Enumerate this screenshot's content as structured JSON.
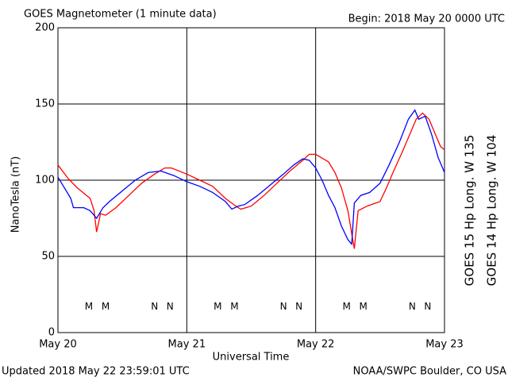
{
  "chart_data": {
    "type": "line",
    "title": "GOES Magnetometer (1 minute data)",
    "begin": "Begin:  2018 May 20 0000 UTC",
    "updated": "Updated 2018 May 22 23:59:01 UTC",
    "source": "NOAA/SWPC Boulder, CO USA",
    "x_label": "Universal Time",
    "y_label": "NanoTesla (nT)",
    "xlim": [
      0,
      3
    ],
    "xticks": [
      {
        "value": 0,
        "label": "May 20"
      },
      {
        "value": 1,
        "label": "May 21"
      },
      {
        "value": 2,
        "label": "May 22"
      },
      {
        "value": 3,
        "label": "May 23"
      }
    ],
    "ylim": [
      0,
      200
    ],
    "yticks": [
      0,
      50,
      100,
      150,
      200
    ],
    "grid": true,
    "series": [
      {
        "name": "GOES 15 Hp  Long. W 135",
        "color": "#ff0000",
        "x": [
          0,
          0.08,
          0.15,
          0.25,
          0.28,
          0.3,
          0.33,
          0.37,
          0.45,
          0.55,
          0.65,
          0.75,
          0.83,
          0.88,
          1.0,
          1.1,
          1.2,
          1.3,
          1.38,
          1.42,
          1.5,
          1.6,
          1.7,
          1.8,
          1.9,
          1.95,
          2.0,
          2.1,
          2.15,
          2.2,
          2.25,
          2.28,
          2.3,
          2.33,
          2.4,
          2.5,
          2.55,
          2.6,
          2.67,
          2.73,
          2.78,
          2.83,
          2.88,
          2.93,
          2.97,
          3.0
        ],
        "values": [
          110,
          101,
          95,
          88,
          80,
          66,
          78,
          77,
          82,
          90,
          98,
          104,
          108,
          108,
          104,
          100,
          96,
          88,
          83,
          81,
          83,
          90,
          98,
          106,
          113,
          117,
          117,
          112,
          105,
          95,
          80,
          65,
          55,
          80,
          83,
          86,
          95,
          105,
          118,
          130,
          140,
          144,
          140,
          130,
          122,
          120
        ]
      },
      {
        "name": "GOES 14 Hp  Long. W 104",
        "color": "#0000ff",
        "x": [
          0,
          0.05,
          0.1,
          0.12,
          0.2,
          0.25,
          0.3,
          0.35,
          0.4,
          0.5,
          0.6,
          0.7,
          0.8,
          0.9,
          1.0,
          1.1,
          1.2,
          1.3,
          1.35,
          1.4,
          1.45,
          1.55,
          1.65,
          1.75,
          1.83,
          1.9,
          1.95,
          2.0,
          2.05,
          2.1,
          2.15,
          2.2,
          2.25,
          2.28,
          2.3,
          2.35,
          2.42,
          2.5,
          2.57,
          2.65,
          2.72,
          2.77,
          2.8,
          2.85,
          2.9,
          2.95,
          3.0
        ],
        "values": [
          102,
          95,
          88,
          82,
          82,
          80,
          75,
          82,
          86,
          93,
          100,
          105,
          106,
          103,
          99,
          96,
          92,
          86,
          81,
          83,
          84,
          90,
          97,
          104,
          110,
          114,
          113,
          108,
          100,
          90,
          82,
          70,
          61,
          58,
          85,
          90,
          92,
          98,
          110,
          125,
          140,
          146,
          140,
          142,
          130,
          115,
          105
        ]
      }
    ],
    "annotations": [
      {
        "text": "M",
        "x": 0.24,
        "y": 17,
        "color": "#0000ff"
      },
      {
        "text": "M",
        "x": 0.37,
        "y": 17,
        "color": "#ff0000"
      },
      {
        "text": "N",
        "x": 0.75,
        "y": 17,
        "color": "#0000ff"
      },
      {
        "text": "N",
        "x": 0.87,
        "y": 17,
        "color": "#ff0000"
      },
      {
        "text": "M",
        "x": 1.24,
        "y": 17,
        "color": "#0000ff"
      },
      {
        "text": "M",
        "x": 1.37,
        "y": 17,
        "color": "#ff0000"
      },
      {
        "text": "N",
        "x": 1.75,
        "y": 17,
        "color": "#0000ff"
      },
      {
        "text": "N",
        "x": 1.87,
        "y": 17,
        "color": "#ff0000"
      },
      {
        "text": "M",
        "x": 2.24,
        "y": 17,
        "color": "#0000ff"
      },
      {
        "text": "M",
        "x": 2.37,
        "y": 17,
        "color": "#ff0000"
      },
      {
        "text": "N",
        "x": 2.75,
        "y": 17,
        "color": "#0000ff"
      },
      {
        "text": "N",
        "x": 2.87,
        "y": 17,
        "color": "#ff0000"
      }
    ]
  }
}
